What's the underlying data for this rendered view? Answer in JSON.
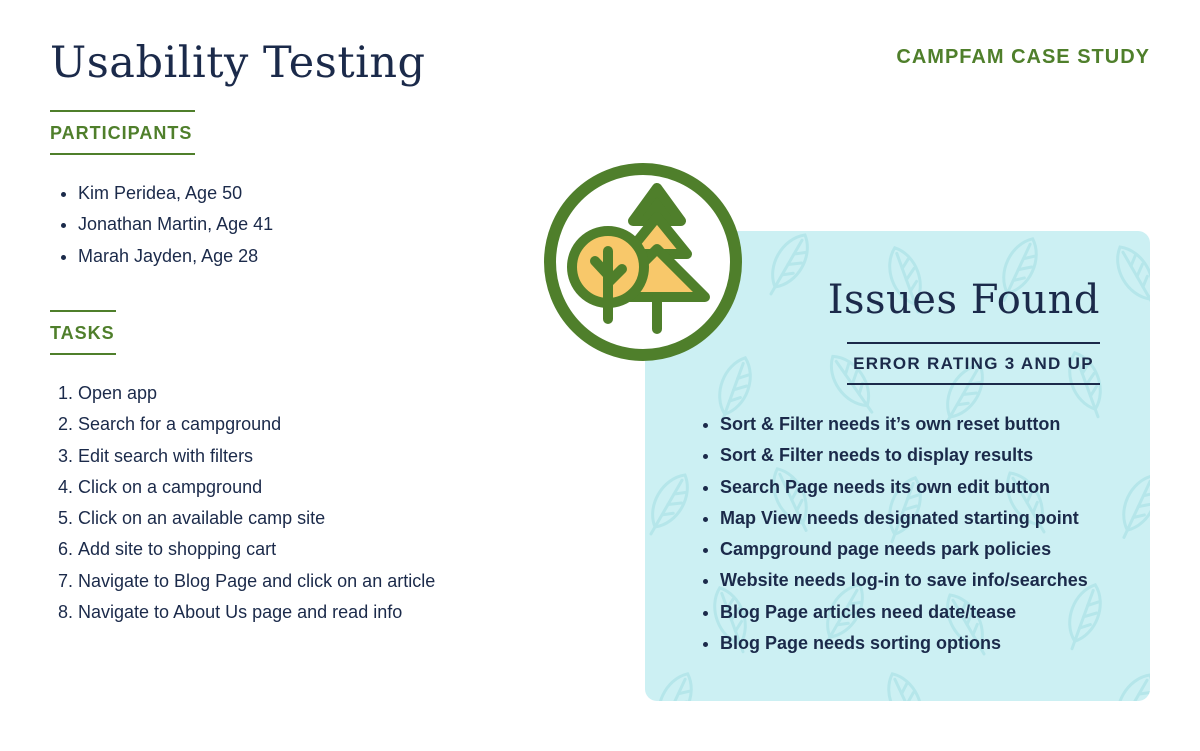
{
  "header": {
    "title": "Usability Testing",
    "brand": "CAMPFAM CASE STUDY",
    "brand_color": "#4f7f2b"
  },
  "participants": {
    "heading": "PARTICIPANTS",
    "items": [
      "Kim Peridea, Age 50",
      "Jonathan Martin, Age 41",
      "Marah Jayden, Age 28"
    ]
  },
  "tasks": {
    "heading": "TASKS",
    "items": [
      "Open app",
      "Search for a campground",
      "Edit search with filters",
      "Click on a campground",
      "Click on an available camp site",
      "Add site to shopping cart",
      "Navigate to Blog Page and click on an article",
      "Navigate to About Us page and read info"
    ]
  },
  "issues": {
    "title": "Issues Found",
    "subtitle": "ERROR RATING 3 AND UP",
    "panel_color": "#ccf0f3",
    "items": [
      "Sort & Filter needs it’s own reset button",
      "Sort & Filter needs to display results",
      "Search Page needs its own edit button",
      "Map View needs designated starting point",
      "Campground page needs park policies",
      "Website needs log-in to save info/searches",
      "Blog Page articles need date/tease",
      "Blog Page needs sorting options"
    ]
  },
  "logo": {
    "icon": "trees-logo-icon",
    "ring_color": "#4f7f2b",
    "fill_color": "#f8c86a"
  }
}
